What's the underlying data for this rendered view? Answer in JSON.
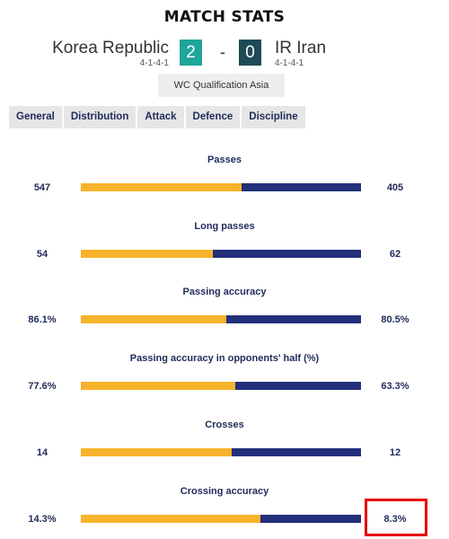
{
  "header": {
    "title": "MATCH STATS",
    "home_team": "Korea Republic",
    "home_formation": "4-1-4-1",
    "home_score": "2",
    "away_team": "IR Iran",
    "away_formation": "4-1-4-1",
    "away_score": "0",
    "dash": "-",
    "competition": "WC Qualification Asia"
  },
  "tabs": [
    {
      "label": "General",
      "active": false
    },
    {
      "label": "Distribution",
      "active": true
    },
    {
      "label": "Attack",
      "active": false
    },
    {
      "label": "Defence",
      "active": false
    },
    {
      "label": "Discipline",
      "active": false
    }
  ],
  "colors": {
    "home_bar": "#f7b32b",
    "away_bar": "#232f7a",
    "active_tab": "#232f7a",
    "highlight": "#e60000"
  },
  "stats": [
    {
      "label": "Passes",
      "home": "547",
      "away": "405",
      "home_share": 0.575
    },
    {
      "label": "Long passes",
      "home": "54",
      "away": "62",
      "home_share": 0.47
    },
    {
      "label": "Passing accuracy",
      "home": "86.1%",
      "away": "80.5%",
      "home_share": 0.52
    },
    {
      "label": "Passing accuracy in opponents' half (%)",
      "home": "77.6%",
      "away": "63.3%",
      "home_share": 0.55
    },
    {
      "label": "Crosses",
      "home": "14",
      "away": "12",
      "home_share": 0.54
    },
    {
      "label": "Crossing accuracy",
      "home": "14.3%",
      "away": "8.3%",
      "home_share": 0.64
    }
  ]
}
